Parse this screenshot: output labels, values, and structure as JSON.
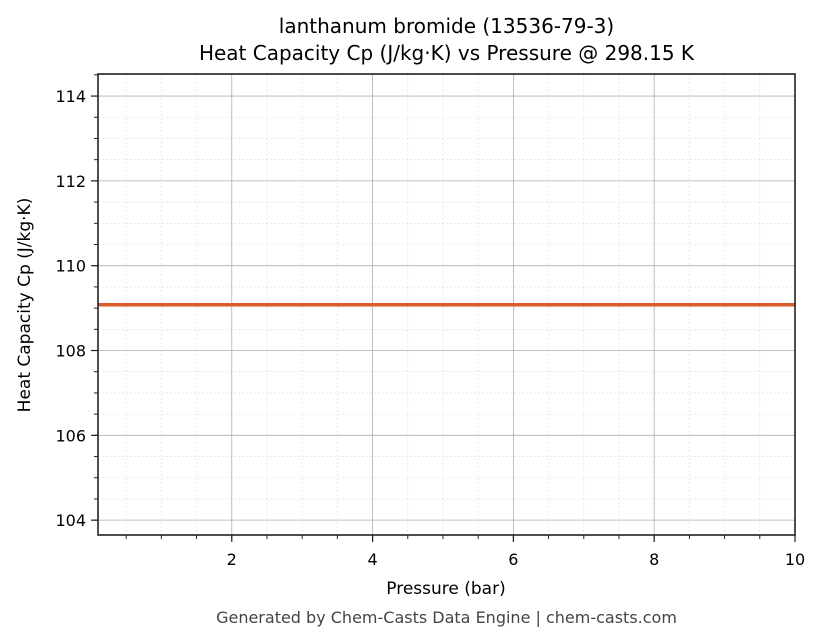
{
  "chart": {
    "title_line1": "lanthanum bromide (13536-79-3)",
    "title_line2": "Heat Capacity Cp (J/kg·K) vs Pressure @ 298.15 K",
    "xlabel": "Pressure (bar)",
    "ylabel": "Heat Capacity Cp (J/kg·K)",
    "footer": "Generated by Chem-Casts Data Engine | chem-casts.com",
    "line_color": "#d95a2b"
  },
  "chart_data": {
    "type": "line",
    "title": "lanthanum bromide (13536-79-3) — Heat Capacity Cp (J/kg·K) vs Pressure @ 298.15 K",
    "xlabel": "Pressure (bar)",
    "ylabel": "Heat Capacity Cp (J/kg·K)",
    "xlim": [
      0.1,
      10
    ],
    "ylim": [
      103.65,
      114.52
    ],
    "xticks": [
      2,
      4,
      6,
      8,
      10
    ],
    "yticks": [
      104,
      106,
      108,
      110,
      112,
      114
    ],
    "grid": true,
    "minor_grid": true,
    "legend": null,
    "series": [
      {
        "name": "Cp",
        "color": "#d95a2b",
        "x": [
          0.1,
          10
        ],
        "y": [
          109.08,
          109.08
        ]
      }
    ]
  }
}
